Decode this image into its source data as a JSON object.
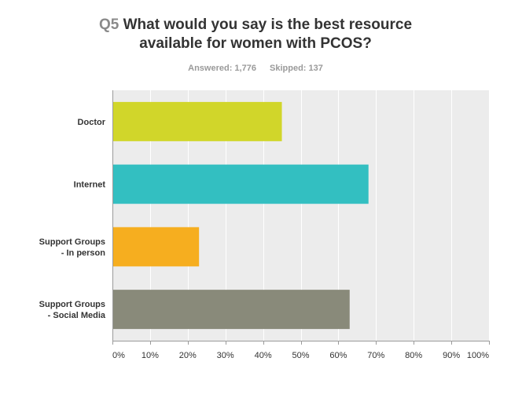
{
  "question": {
    "number": "Q5",
    "title_line1": "What would you say is the best resource",
    "title_line2": "available for women with PCOS?"
  },
  "stats": {
    "answered": "Answered: 1,776",
    "skipped": "Skipped: 137"
  },
  "colors": {
    "plot_bg": "#ececec",
    "grid": "#ffffff",
    "axis": "#9b9b9b"
  },
  "chart_data": {
    "type": "bar",
    "orientation": "horizontal",
    "title": "What would you say is the best resource available for women with PCOS?",
    "categories": [
      [
        "Doctor"
      ],
      [
        "Internet"
      ],
      [
        "Support Groups",
        "- In person"
      ],
      [
        "Support Groups",
        "- Social Media"
      ]
    ],
    "values": [
      45,
      68,
      23,
      63
    ],
    "colors": [
      "#d1d62a",
      "#33bfc1",
      "#f6ae1f",
      "#898a7a"
    ],
    "xlim": [
      0,
      100
    ],
    "xticks": [
      "0%",
      "10%",
      "20%",
      "30%",
      "40%",
      "50%",
      "60%",
      "70%",
      "80%",
      "90%",
      "100%"
    ],
    "grid": true,
    "xlabel": "",
    "ylabel": ""
  }
}
